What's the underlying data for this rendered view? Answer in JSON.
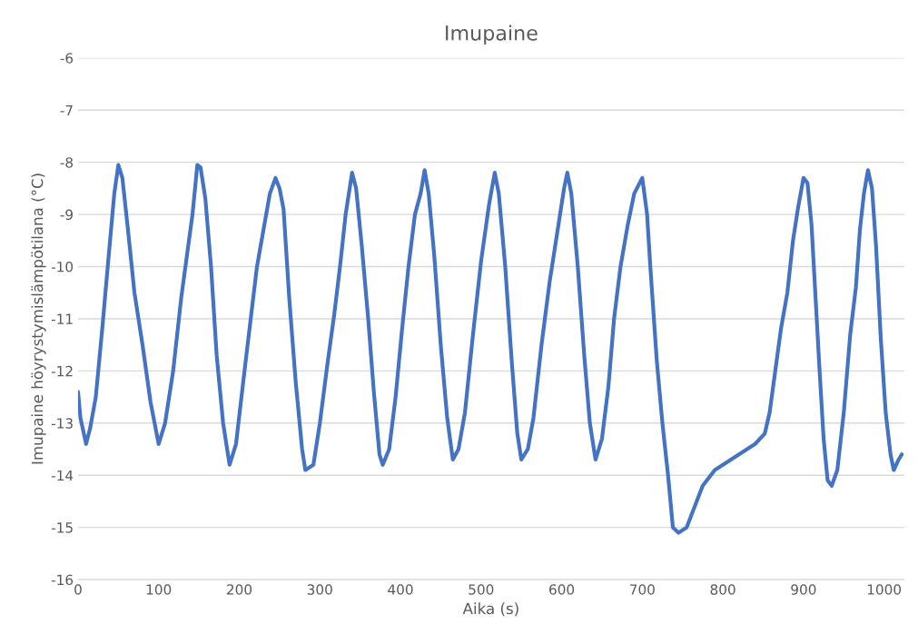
{
  "chart_data": {
    "type": "line",
    "title": "Imupaine",
    "xlabel": "Aika (s)",
    "ylabel": "Imupaine höyrystymislämpötilana (°C)",
    "xlim": [
      0,
      1025
    ],
    "xticks": [
      0,
      100,
      200,
      300,
      400,
      500,
      600,
      700,
      800,
      900,
      1000
    ],
    "ylim": [
      -16,
      -6
    ],
    "yticks": [
      -16,
      -15,
      -14,
      -13,
      -12,
      -11,
      -10,
      -9,
      -8,
      -7,
      -6
    ],
    "grid": "y",
    "marker": "none",
    "line_style": "solid",
    "series": [
      {
        "color": "#4472c4",
        "x": [
          0,
          3,
          10,
          15,
          22,
          30,
          38,
          45,
          50,
          55,
          62,
          70,
          80,
          90,
          100,
          108,
          118,
          128,
          135,
          142,
          148,
          152,
          158,
          165,
          172,
          180,
          188,
          196,
          205,
          215,
          222,
          230,
          238,
          245,
          250,
          255,
          262,
          270,
          278,
          282,
          292,
          300,
          310,
          318,
          325,
          332,
          340,
          345,
          352,
          360,
          367,
          374,
          378,
          386,
          394,
          402,
          410,
          418,
          425,
          430,
          435,
          442,
          450,
          458,
          465,
          472,
          480,
          490,
          500,
          510,
          517,
          522,
          530,
          538,
          545,
          550,
          558,
          565,
          575,
          585,
          595,
          603,
          607,
          612,
          620,
          628,
          635,
          642,
          650,
          658,
          665,
          673,
          682,
          690,
          700,
          706,
          710,
          718,
          725,
          732,
          738,
          745,
          755,
          765,
          775,
          790,
          800,
          820,
          840,
          852,
          858,
          865,
          872,
          880,
          887,
          893,
          900,
          905,
          910,
          915,
          920,
          925,
          930,
          935,
          942,
          950,
          958,
          965,
          970,
          975,
          980,
          985,
          990,
          996,
          1002,
          1008,
          1012,
          1018,
          1022
        ],
        "values": [
          -12.4,
          -12.9,
          -13.4,
          -13.1,
          -12.5,
          -11.2,
          -9.8,
          -8.6,
          -8.05,
          -8.3,
          -9.3,
          -10.5,
          -11.5,
          -12.6,
          -13.4,
          -13.0,
          -12.0,
          -10.6,
          -9.8,
          -9.0,
          -8.05,
          -8.1,
          -8.7,
          -10.0,
          -11.7,
          -13.0,
          -13.8,
          -13.4,
          -12.2,
          -10.9,
          -10.0,
          -9.3,
          -8.6,
          -8.3,
          -8.5,
          -8.9,
          -10.6,
          -12.2,
          -13.5,
          -13.9,
          -13.8,
          -13.0,
          -11.8,
          -10.9,
          -10.0,
          -9.0,
          -8.2,
          -8.5,
          -9.6,
          -11.0,
          -12.4,
          -13.6,
          -13.8,
          -13.5,
          -12.5,
          -11.2,
          -10.0,
          -9.0,
          -8.6,
          -8.15,
          -8.6,
          -9.8,
          -11.5,
          -12.9,
          -13.7,
          -13.5,
          -12.8,
          -11.3,
          -9.9,
          -8.8,
          -8.2,
          -8.6,
          -10.0,
          -11.8,
          -13.2,
          -13.7,
          -13.5,
          -12.9,
          -11.5,
          -10.3,
          -9.3,
          -8.5,
          -8.2,
          -8.6,
          -10.0,
          -11.7,
          -13.0,
          -13.7,
          -13.3,
          -12.3,
          -11.0,
          -10.0,
          -9.2,
          -8.6,
          -8.3,
          -9.0,
          -10.0,
          -11.8,
          -13.0,
          -14.0,
          -15.0,
          -15.1,
          -15.0,
          -14.6,
          -14.2,
          -13.9,
          -13.8,
          -13.6,
          -13.4,
          -13.2,
          -12.8,
          -12.0,
          -11.2,
          -10.5,
          -9.5,
          -8.9,
          -8.3,
          -8.4,
          -9.2,
          -10.6,
          -12.0,
          -13.3,
          -14.1,
          -14.2,
          -13.9,
          -12.8,
          -11.3,
          -10.4,
          -9.3,
          -8.6,
          -8.15,
          -8.5,
          -9.6,
          -11.4,
          -12.8,
          -13.6,
          -13.9,
          -13.7,
          -13.6
        ]
      }
    ]
  }
}
